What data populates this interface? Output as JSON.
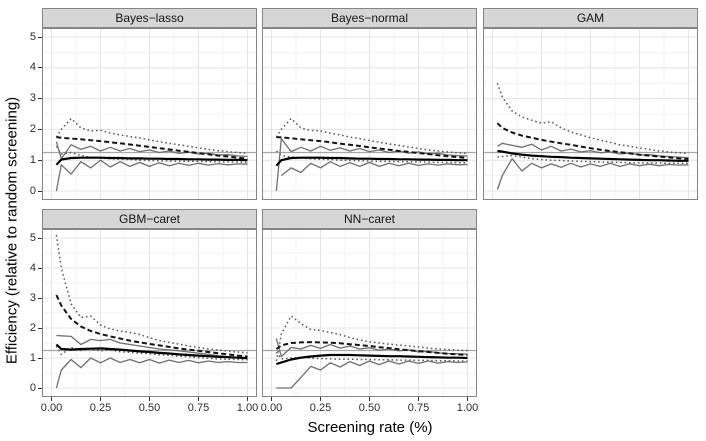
{
  "chart_data": {
    "type": "line",
    "title": "",
    "xlabel": "Screening rate (%)",
    "ylabel": "Efficiency (relative to random screening)",
    "xlim": [
      0,
      1
    ],
    "ylim": [
      0,
      5
    ],
    "grid": "major+minor, light gray on white, bw theme",
    "legend": "none",
    "reference_line_y": 1.25,
    "x_ticks": {
      "values": [
        0,
        0.25,
        0.5,
        0.75,
        1
      ],
      "labels": [
        "0.00",
        "0.25",
        "0.50",
        "0.75",
        "1.00"
      ]
    },
    "y_ticks": {
      "values": [
        0,
        1,
        2,
        3,
        4,
        5
      ],
      "labels": [
        "0",
        "1",
        "2",
        "3",
        "4",
        "5"
      ]
    },
    "colors": {
      "reference_line": "#a6a6a6",
      "grid_major": "#e4e4e4",
      "grid_minor": "#f3f3f3",
      "strip_fill": "#d6d6d6",
      "panel_border": "#858585",
      "solid_black": "#000000",
      "dashed_black": "#141414",
      "dotted_gray": "#5a5a5a",
      "solid_gray": "#6f6f6f"
    },
    "series_styles": {
      "upper_dotted": {
        "color": "#5a5a5a",
        "dash": "1.6 2.8",
        "width": 1.5
      },
      "lower_dotted": {
        "color": "#5a5a5a",
        "dash": "1.6 2.8",
        "width": 1.5
      },
      "upper_gray": {
        "color": "#6f6f6f",
        "dash": "",
        "width": 1.3
      },
      "lower_gray": {
        "color": "#6f6f6f",
        "dash": "",
        "width": 1.3
      },
      "dashed_black": {
        "color": "#141414",
        "dash": "5 3",
        "width": 2.0
      },
      "solid_black": {
        "color": "#000000",
        "dash": "",
        "width": 2.2
      }
    },
    "x": [
      0.025,
      0.05,
      0.1,
      0.15,
      0.2,
      0.25,
      0.3,
      0.35,
      0.4,
      0.45,
      0.5,
      0.55,
      0.6,
      0.65,
      0.7,
      0.75,
      0.8,
      0.85,
      0.9,
      0.95,
      1.0
    ],
    "facets": [
      {
        "title": "Bayes−lasso",
        "series": {
          "upper_dotted": [
            1.75,
            2.0,
            2.35,
            2.05,
            1.95,
            1.97,
            1.88,
            1.82,
            1.77,
            1.72,
            1.66,
            1.6,
            1.55,
            1.5,
            1.45,
            1.4,
            1.35,
            1.31,
            1.28,
            1.25,
            1.22
          ],
          "lower_dotted": [
            1.45,
            1.2,
            1.25,
            1.15,
            1.1,
            1.07,
            1.05,
            1.03,
            1.02,
            1.0,
            0.99,
            0.98,
            0.97,
            0.97,
            0.96,
            0.96,
            0.95,
            0.95,
            0.94,
            0.94,
            0.93
          ],
          "upper_gray": [
            1.6,
            1.05,
            1.5,
            1.35,
            1.45,
            1.3,
            1.42,
            1.3,
            1.38,
            1.28,
            1.33,
            1.25,
            1.3,
            1.22,
            1.26,
            1.2,
            1.22,
            1.17,
            1.18,
            1.14,
            1.12
          ],
          "lower_gray": [
            0.0,
            0.85,
            0.55,
            0.95,
            0.75,
            1.0,
            0.78,
            0.95,
            0.8,
            0.93,
            0.8,
            0.92,
            0.82,
            0.9,
            0.83,
            0.9,
            0.84,
            0.89,
            0.85,
            0.88,
            0.87
          ],
          "dashed_black": [
            1.75,
            1.73,
            1.7,
            1.68,
            1.65,
            1.62,
            1.58,
            1.55,
            1.51,
            1.47,
            1.43,
            1.39,
            1.35,
            1.31,
            1.27,
            1.23,
            1.19,
            1.15,
            1.12,
            1.08,
            1.05
          ],
          "solid_black": [
            0.85,
            1.02,
            1.07,
            1.08,
            1.08,
            1.08,
            1.07,
            1.07,
            1.06,
            1.06,
            1.05,
            1.05,
            1.04,
            1.04,
            1.03,
            1.03,
            1.02,
            1.02,
            1.01,
            1.01,
            1.0
          ]
        }
      },
      {
        "title": "Bayes−normal",
        "series": {
          "upper_dotted": [
            1.75,
            2.0,
            2.35,
            2.05,
            1.97,
            1.95,
            1.88,
            1.82,
            1.75,
            1.7,
            1.64,
            1.58,
            1.53,
            1.48,
            1.43,
            1.38,
            1.33,
            1.3,
            1.27,
            1.24,
            1.22
          ],
          "lower_dotted": [
            1.3,
            1.15,
            1.1,
            1.07,
            1.05,
            1.03,
            1.02,
            1.0,
            0.99,
            0.98,
            0.97,
            0.96,
            0.96,
            0.95,
            0.95,
            0.94,
            0.94,
            0.93,
            0.93,
            0.92,
            0.92
          ],
          "upper_gray": [
            0.0,
            1.7,
            1.28,
            1.42,
            1.3,
            1.45,
            1.32,
            1.4,
            1.3,
            1.38,
            1.28,
            1.33,
            1.25,
            1.3,
            1.23,
            1.27,
            1.2,
            1.22,
            1.17,
            1.15,
            1.13
          ],
          "lower_gray": [
            null,
            0.5,
            0.75,
            0.6,
            0.9,
            0.75,
            0.95,
            0.8,
            0.92,
            0.8,
            0.93,
            0.8,
            0.9,
            0.82,
            0.9,
            0.83,
            0.88,
            0.84,
            0.88,
            0.85,
            0.86
          ],
          "dashed_black": [
            1.75,
            1.74,
            1.71,
            1.68,
            1.65,
            1.62,
            1.58,
            1.54,
            1.5,
            1.46,
            1.42,
            1.38,
            1.34,
            1.3,
            1.27,
            1.23,
            1.2,
            1.16,
            1.13,
            1.1,
            1.07
          ],
          "solid_black": [
            0.82,
            1.0,
            1.07,
            1.08,
            1.08,
            1.08,
            1.07,
            1.07,
            1.06,
            1.05,
            1.05,
            1.04,
            1.04,
            1.03,
            1.03,
            1.02,
            1.02,
            1.01,
            1.01,
            1.0,
            1.0
          ]
        }
      },
      {
        "title": "GAM",
        "series": {
          "upper_dotted": [
            3.5,
            3.05,
            2.6,
            2.4,
            2.3,
            2.2,
            2.25,
            2.05,
            1.92,
            1.82,
            1.73,
            1.65,
            1.58,
            1.5,
            1.45,
            1.4,
            1.35,
            1.3,
            1.27,
            1.24,
            1.22
          ],
          "lower_dotted": [
            1.1,
            1.12,
            1.15,
            1.1,
            1.05,
            1.02,
            1.0,
            0.99,
            0.97,
            0.96,
            0.95,
            0.94,
            0.94,
            0.93,
            0.92,
            0.92,
            0.91,
            0.91,
            0.9,
            0.9,
            0.9
          ],
          "upper_gray": [
            1.45,
            1.55,
            1.48,
            1.42,
            1.52,
            1.33,
            1.45,
            1.3,
            1.36,
            1.27,
            1.31,
            1.24,
            1.27,
            1.2,
            1.23,
            1.17,
            1.18,
            1.14,
            1.12,
            1.1,
            1.08
          ],
          "lower_gray": [
            0.05,
            0.5,
            1.05,
            0.65,
            0.9,
            0.75,
            0.88,
            0.77,
            0.9,
            0.78,
            0.88,
            0.8,
            0.9,
            0.8,
            0.88,
            0.82,
            0.87,
            0.82,
            0.86,
            0.84,
            0.85
          ],
          "dashed_black": [
            2.2,
            2.05,
            1.9,
            1.8,
            1.73,
            1.66,
            1.6,
            1.55,
            1.5,
            1.44,
            1.39,
            1.34,
            1.3,
            1.26,
            1.22,
            1.18,
            1.15,
            1.12,
            1.09,
            1.06,
            1.04
          ],
          "solid_black": [
            1.3,
            1.28,
            1.22,
            1.18,
            1.15,
            1.13,
            1.11,
            1.1,
            1.08,
            1.07,
            1.06,
            1.05,
            1.04,
            1.03,
            1.02,
            1.01,
            1.0,
            1.0,
            0.99,
            0.98,
            0.98
          ]
        }
      },
      {
        "title": "GBM−caret",
        "series": {
          "upper_dotted": [
            5.1,
            4.0,
            2.8,
            2.35,
            2.4,
            2.1,
            1.97,
            1.9,
            1.85,
            1.78,
            1.68,
            1.58,
            1.52,
            1.46,
            1.4,
            1.35,
            1.3,
            1.27,
            1.23,
            1.2,
            1.17
          ],
          "lower_dotted": [
            1.4,
            1.12,
            1.35,
            1.25,
            1.3,
            1.24,
            1.27,
            1.21,
            1.19,
            1.16,
            1.14,
            1.11,
            1.09,
            1.06,
            1.04,
            1.01,
            0.99,
            0.97,
            0.96,
            0.95,
            0.94
          ],
          "upper_gray": [
            1.75,
            1.74,
            1.72,
            1.45,
            1.62,
            1.58,
            1.62,
            1.5,
            1.45,
            1.4,
            1.35,
            1.3,
            1.27,
            1.24,
            1.2,
            1.16,
            1.12,
            1.08,
            1.04,
            1.0,
            0.97
          ],
          "lower_gray": [
            0.0,
            0.6,
            0.95,
            0.68,
            1.0,
            0.84,
            1.0,
            0.85,
            0.95,
            0.84,
            0.95,
            0.83,
            0.93,
            0.85,
            0.92,
            0.84,
            0.9,
            0.85,
            0.88,
            0.85,
            0.85
          ],
          "dashed_black": [
            3.1,
            2.75,
            2.3,
            2.05,
            1.9,
            1.8,
            1.72,
            1.65,
            1.58,
            1.52,
            1.47,
            1.42,
            1.37,
            1.32,
            1.28,
            1.24,
            1.2,
            1.16,
            1.12,
            1.08,
            1.05
          ],
          "solid_black": [
            1.45,
            1.3,
            1.28,
            1.3,
            1.31,
            1.32,
            1.3,
            1.28,
            1.25,
            1.22,
            1.2,
            1.17,
            1.15,
            1.12,
            1.1,
            1.08,
            1.06,
            1.04,
            1.03,
            1.01,
            1.0
          ]
        }
      },
      {
        "title": "NN−caret",
        "series": {
          "upper_dotted": [
            0.9,
            1.8,
            2.4,
            2.15,
            1.95,
            1.92,
            1.85,
            1.78,
            1.68,
            1.6,
            1.54,
            1.5,
            1.46,
            1.43,
            1.4,
            1.37,
            1.33,
            1.3,
            1.28,
            1.26,
            1.25
          ],
          "lower_dotted": [
            1.2,
            0.97,
            1.0,
            1.02,
            1.0,
            0.98,
            0.97,
            0.96,
            0.96,
            0.95,
            0.95,
            0.94,
            0.94,
            0.93,
            0.93,
            0.92,
            0.92,
            0.91,
            0.91,
            0.9,
            0.9
          ],
          "upper_gray": [
            1.65,
            1.05,
            1.35,
            1.3,
            1.42,
            1.32,
            1.45,
            1.33,
            1.4,
            1.3,
            1.34,
            1.26,
            1.3,
            1.24,
            1.27,
            1.2,
            1.22,
            1.17,
            1.15,
            1.14,
            1.13
          ],
          "lower_gray": [
            0.0,
            0.0,
            0.0,
            0.35,
            0.72,
            0.6,
            0.84,
            0.7,
            0.88,
            0.75,
            0.9,
            0.78,
            0.9,
            0.8,
            0.9,
            0.82,
            0.9,
            0.83,
            0.88,
            0.85,
            0.87
          ],
          "dashed_black": [
            1.3,
            1.42,
            1.5,
            1.52,
            1.53,
            1.52,
            1.51,
            1.49,
            1.46,
            1.43,
            1.4,
            1.36,
            1.33,
            1.29,
            1.26,
            1.23,
            1.2,
            1.17,
            1.14,
            1.12,
            1.1
          ],
          "solid_black": [
            0.8,
            0.85,
            0.95,
            1.01,
            1.05,
            1.08,
            1.1,
            1.1,
            1.1,
            1.09,
            1.08,
            1.07,
            1.06,
            1.06,
            1.05,
            1.04,
            1.03,
            1.02,
            1.01,
            1.01,
            1.0
          ]
        }
      }
    ]
  }
}
